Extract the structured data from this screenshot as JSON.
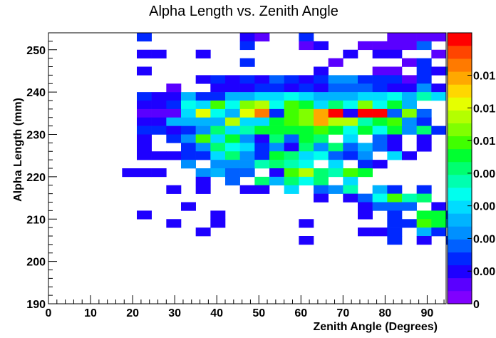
{
  "chart_data": {
    "type": "heatmap",
    "title": "Alpha Length vs. Zenith Angle",
    "xlabel": "Zenith Angle (Degrees)",
    "ylabel": "Alpha Length (mm)",
    "xlim": [
      0,
      94.5
    ],
    "ylim": [
      190,
      254
    ],
    "x_ticks": [
      "0",
      "10",
      "20",
      "30",
      "40",
      "50",
      "60",
      "70",
      "80",
      "90"
    ],
    "y_ticks": [
      "190",
      "200",
      "210",
      "220",
      "230",
      "240",
      "250"
    ],
    "colorbar_labels": [
      "0",
      "0.00",
      "0.00",
      "0.00",
      "0.00",
      "0.01",
      "0.01",
      "0.01"
    ],
    "colors": [
      "#8000ff",
      "#5a00ff",
      "#1e00ff",
      "#0028ff",
      "#0060ff",
      "#0090ff",
      "#00b4ff",
      "#00dcff",
      "#00ffee",
      "#00ffb0",
      "#00ff70",
      "#00ff30",
      "#40ff00",
      "#80ff00",
      "#b4ff00",
      "#e6ff00",
      "#ffd700",
      "#ffa800",
      "#ff7a00",
      "#ff4500",
      "#ff0000"
    ],
    "grid": false,
    "bin_width_x": 3.5,
    "bin_width_y": 2,
    "bin_x_start": 0,
    "bin_y_start": 190,
    "z_level_note_levels": 20,
    "rows": [
      {
        "y": 252,
        "cells": "......3......21..3.....1111."
      },
      {
        "y": 250,
        "cells": ".............3...12..11114.."
      },
      {
        "y": 248,
        "cells": "......22..2.........2.22..1."
      },
      {
        "y": 246,
        "cells": ".............3.....1....13.."
      },
      {
        "y": 244,
        "cells": "......2...........2...11.325"
      },
      {
        "y": 242,
        "cells": "..........2323243235533313.."
      },
      {
        "y": 240,
        "cells": "........1..2223323244432252."
      },
      {
        "y": 238,
        "cells": "......322633667787666778697.."
      },
      {
        "y": 236,
        "cells": "......22387c8de8cb7a8d8b6.."
      },
      {
        "y": 234,
        "cells": "......1117f86fi3cdhk2kk4d4."
      },
      {
        "y": 232,
        "cells": "......226666e77bcdhee9bc53."
      },
      {
        "y": 230,
        "cells": "......33235a79bbbbcb8b8b5a3."
      },
      {
        "y": 228,
        "cells": "......2.35c7b52a4ba.7.42.2."
      },
      {
        "y": 226,
        "cells": "......2..35a87352a5a4642.2."
      },
      {
        "y": 224,
        "cells": "......222337a53ba78435.72.."
      },
      {
        "y": 222,
        "cells": ".........5.5559a98.7.32.."
      },
      {
        "y": 220,
        "cells": ".....222..5644.2cea9cb...."
      },
      {
        "y": 218,
        "cells": "..........2.4.a6a8a.7..."
      },
      {
        "y": 216,
        "cells": "........2.2..22.7.459.63.3."
      },
      {
        "y": 214,
        "cells": "..................2.248c9a.."
      },
      {
        "y": 212,
        "cells": ".........2...........2444.2."
      },
      {
        "y": 210,
        "cells": "......2....2.........2.3.bb3"
      },
      {
        "y": 208,
        "cells": "........2..2.....2.....33cb6"
      },
      {
        "y": 206,
        "cells": "..........2..........223.63"
      },
      {
        "y": 204,
        "cells": ".................2.....3.2.3"
      }
    ]
  }
}
